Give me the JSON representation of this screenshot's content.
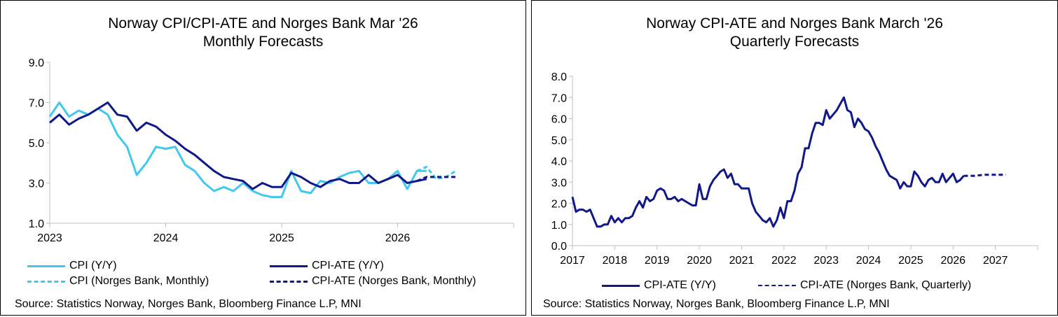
{
  "colors": {
    "cpi": "#42C8EE",
    "cpi_ate": "#10188A",
    "axis": "#bfbfbf",
    "text": "#000000"
  },
  "chart_data": [
    {
      "type": "line",
      "title_line1": "Norway CPI/CPI-ATE and Norges Bank Mar '26",
      "title_line2": "Monthly Forecasts",
      "xlabel": "",
      "ylabel": "",
      "x_ticks": [
        "2023",
        "2024",
        "2025",
        "2026"
      ],
      "y_ticks": [
        "1.0",
        "3.0",
        "5.0",
        "7.0",
        "9.0"
      ],
      "ylim": [
        1.0,
        9.0
      ],
      "xlim": [
        2023.0,
        2027.0
      ],
      "grid": false,
      "legend": "bottom",
      "series": [
        {
          "name": "CPI (Y/Y)",
          "color": "#42C8EE",
          "dash": false,
          "x": [
            2023.0,
            2023.083,
            2023.167,
            2023.25,
            2023.333,
            2023.417,
            2023.5,
            2023.583,
            2023.667,
            2023.75,
            2023.833,
            2023.917,
            2024.0,
            2024.083,
            2024.167,
            2024.25,
            2024.333,
            2024.417,
            2024.5,
            2024.583,
            2024.667,
            2024.75,
            2024.833,
            2024.917,
            2025.0,
            2025.083,
            2025.167,
            2025.25,
            2025.333,
            2025.417,
            2025.5,
            2025.583,
            2025.667,
            2025.75,
            2025.833,
            2025.917,
            2026.0,
            2026.083,
            2026.167,
            2026.25
          ],
          "y": [
            6.3,
            7.0,
            6.3,
            6.6,
            6.4,
            6.7,
            6.4,
            5.4,
            4.8,
            3.4,
            4.0,
            4.8,
            4.7,
            4.8,
            3.9,
            3.6,
            3.0,
            2.6,
            2.8,
            2.6,
            3.0,
            2.6,
            2.4,
            2.3,
            2.3,
            3.6,
            2.6,
            2.5,
            3.1,
            3.0,
            3.3,
            3.5,
            3.6,
            3.0,
            3.0,
            3.2,
            3.6,
            2.7,
            3.6,
            3.6
          ]
        },
        {
          "name": "CPI-ATE (Y/Y)",
          "color": "#10188A",
          "dash": false,
          "x": [
            2023.0,
            2023.083,
            2023.167,
            2023.25,
            2023.333,
            2023.417,
            2023.5,
            2023.583,
            2023.667,
            2023.75,
            2023.833,
            2023.917,
            2024.0,
            2024.083,
            2024.167,
            2024.25,
            2024.333,
            2024.417,
            2024.5,
            2024.583,
            2024.667,
            2024.75,
            2024.833,
            2024.917,
            2025.0,
            2025.083,
            2025.167,
            2025.25,
            2025.333,
            2025.417,
            2025.5,
            2025.583,
            2025.667,
            2025.75,
            2025.833,
            2025.917,
            2026.0,
            2026.083,
            2026.167,
            2026.25
          ],
          "y": [
            6.0,
            6.4,
            5.9,
            6.2,
            6.4,
            6.7,
            7.0,
            6.4,
            6.3,
            5.6,
            6.0,
            5.8,
            5.4,
            5.1,
            4.7,
            4.4,
            4.0,
            3.6,
            3.3,
            3.2,
            3.1,
            2.7,
            3.0,
            2.8,
            2.8,
            3.5,
            3.3,
            3.0,
            2.8,
            3.1,
            3.2,
            3.0,
            3.0,
            3.4,
            3.0,
            3.2,
            3.4,
            3.0,
            3.1,
            3.2
          ]
        },
        {
          "name": "CPI (Norges Bank, Monthly)",
          "color": "#42C8EE",
          "dash": true,
          "x": [
            2026.167,
            2026.25,
            2026.333,
            2026.417,
            2026.5
          ],
          "y": [
            3.6,
            3.8,
            3.2,
            3.3,
            3.6
          ]
        },
        {
          "name": "CPI-ATE (Norges Bank, Monthly)",
          "color": "#10188A",
          "dash": true,
          "x": [
            2026.167,
            2026.25,
            2026.333,
            2026.417,
            2026.5
          ],
          "y": [
            3.1,
            3.3,
            3.3,
            3.3,
            3.3
          ]
        }
      ],
      "source": "Source: Statistics Norway, Norges Bank, Bloomberg Finance L.P, MNI"
    },
    {
      "type": "line",
      "title_line1": "Norway CPI-ATE and Norges Bank March '26",
      "title_line2": "Quarterly Forecasts",
      "xlabel": "",
      "ylabel": "",
      "x_ticks": [
        "2017",
        "2018",
        "2019",
        "2020",
        "2021",
        "2022",
        "2023",
        "2024",
        "2025",
        "2026",
        "2027"
      ],
      "y_ticks": [
        "0.0",
        "1.0",
        "2.0",
        "3.0",
        "4.0",
        "5.0",
        "6.0",
        "7.0",
        "8.0"
      ],
      "ylim": [
        0.0,
        8.0
      ],
      "xlim": [
        2017.0,
        2028.0
      ],
      "grid": false,
      "legend": "bottom",
      "series": [
        {
          "name": "CPI-ATE (Y/Y)",
          "color": "#10188A",
          "dash": false,
          "x": [
            2017.0,
            2017.083,
            2017.167,
            2017.25,
            2017.333,
            2017.417,
            2017.5,
            2017.583,
            2017.667,
            2017.75,
            2017.833,
            2017.917,
            2018.0,
            2018.083,
            2018.167,
            2018.25,
            2018.333,
            2018.417,
            2018.5,
            2018.583,
            2018.667,
            2018.75,
            2018.833,
            2018.917,
            2019.0,
            2019.083,
            2019.167,
            2019.25,
            2019.333,
            2019.417,
            2019.5,
            2019.583,
            2019.667,
            2019.75,
            2019.833,
            2019.917,
            2020.0,
            2020.083,
            2020.167,
            2020.25,
            2020.333,
            2020.417,
            2020.5,
            2020.583,
            2020.667,
            2020.75,
            2020.833,
            2020.917,
            2021.0,
            2021.083,
            2021.167,
            2021.25,
            2021.333,
            2021.417,
            2021.5,
            2021.583,
            2021.667,
            2021.75,
            2021.833,
            2021.917,
            2022.0,
            2022.083,
            2022.167,
            2022.25,
            2022.333,
            2022.417,
            2022.5,
            2022.583,
            2022.667,
            2022.75,
            2022.833,
            2022.917,
            2023.0,
            2023.083,
            2023.167,
            2023.25,
            2023.333,
            2023.417,
            2023.5,
            2023.583,
            2023.667,
            2023.75,
            2023.833,
            2023.917,
            2024.0,
            2024.083,
            2024.167,
            2024.25,
            2024.333,
            2024.417,
            2024.5,
            2024.583,
            2024.667,
            2024.75,
            2024.833,
            2024.917,
            2025.0,
            2025.083,
            2025.167,
            2025.25,
            2025.333,
            2025.417,
            2025.5,
            2025.583,
            2025.667,
            2025.75,
            2025.833,
            2025.917,
            2026.0,
            2026.083,
            2026.167,
            2026.25
          ],
          "y": [
            2.3,
            1.6,
            1.7,
            1.7,
            1.6,
            1.7,
            1.3,
            0.9,
            0.9,
            1.0,
            1.0,
            1.4,
            1.1,
            1.3,
            1.1,
            1.3,
            1.3,
            1.4,
            1.8,
            2.1,
            1.8,
            2.3,
            2.1,
            2.2,
            2.6,
            2.7,
            2.6,
            2.2,
            2.2,
            2.3,
            2.1,
            2.2,
            2.1,
            2.0,
            1.9,
            1.9,
            2.9,
            2.2,
            2.2,
            2.8,
            3.1,
            3.3,
            3.5,
            3.6,
            3.2,
            3.4,
            2.9,
            2.9,
            2.7,
            2.7,
            2.7,
            2.0,
            1.6,
            1.4,
            1.2,
            1.1,
            1.3,
            0.9,
            1.2,
            1.8,
            1.3,
            2.1,
            2.1,
            2.6,
            3.4,
            3.7,
            4.6,
            4.6,
            5.3,
            5.8,
            5.8,
            5.7,
            6.4,
            6.0,
            6.2,
            6.4,
            6.7,
            7.0,
            6.4,
            6.3,
            5.6,
            6.0,
            5.8,
            5.5,
            5.4,
            5.1,
            4.7,
            4.4,
            4.0,
            3.6,
            3.3,
            3.2,
            3.1,
            2.7,
            3.0,
            2.8,
            2.8,
            3.5,
            3.3,
            3.0,
            2.8,
            3.1,
            3.2,
            3.0,
            3.0,
            3.4,
            3.0,
            3.2,
            3.4,
            3.0,
            3.1,
            3.3
          ]
        },
        {
          "name": "CPI-ATE (Norges Bank, Quarterly)",
          "color": "#10188A",
          "dash": true,
          "x": [
            2026.25,
            2026.5,
            2026.75,
            2027.0,
            2027.25
          ],
          "y": [
            3.3,
            3.3,
            3.35,
            3.35,
            3.35
          ]
        }
      ],
      "source": "Source: Statistics Norway, Norges Bank, Bloomberg Finance L.P, MNI"
    }
  ]
}
